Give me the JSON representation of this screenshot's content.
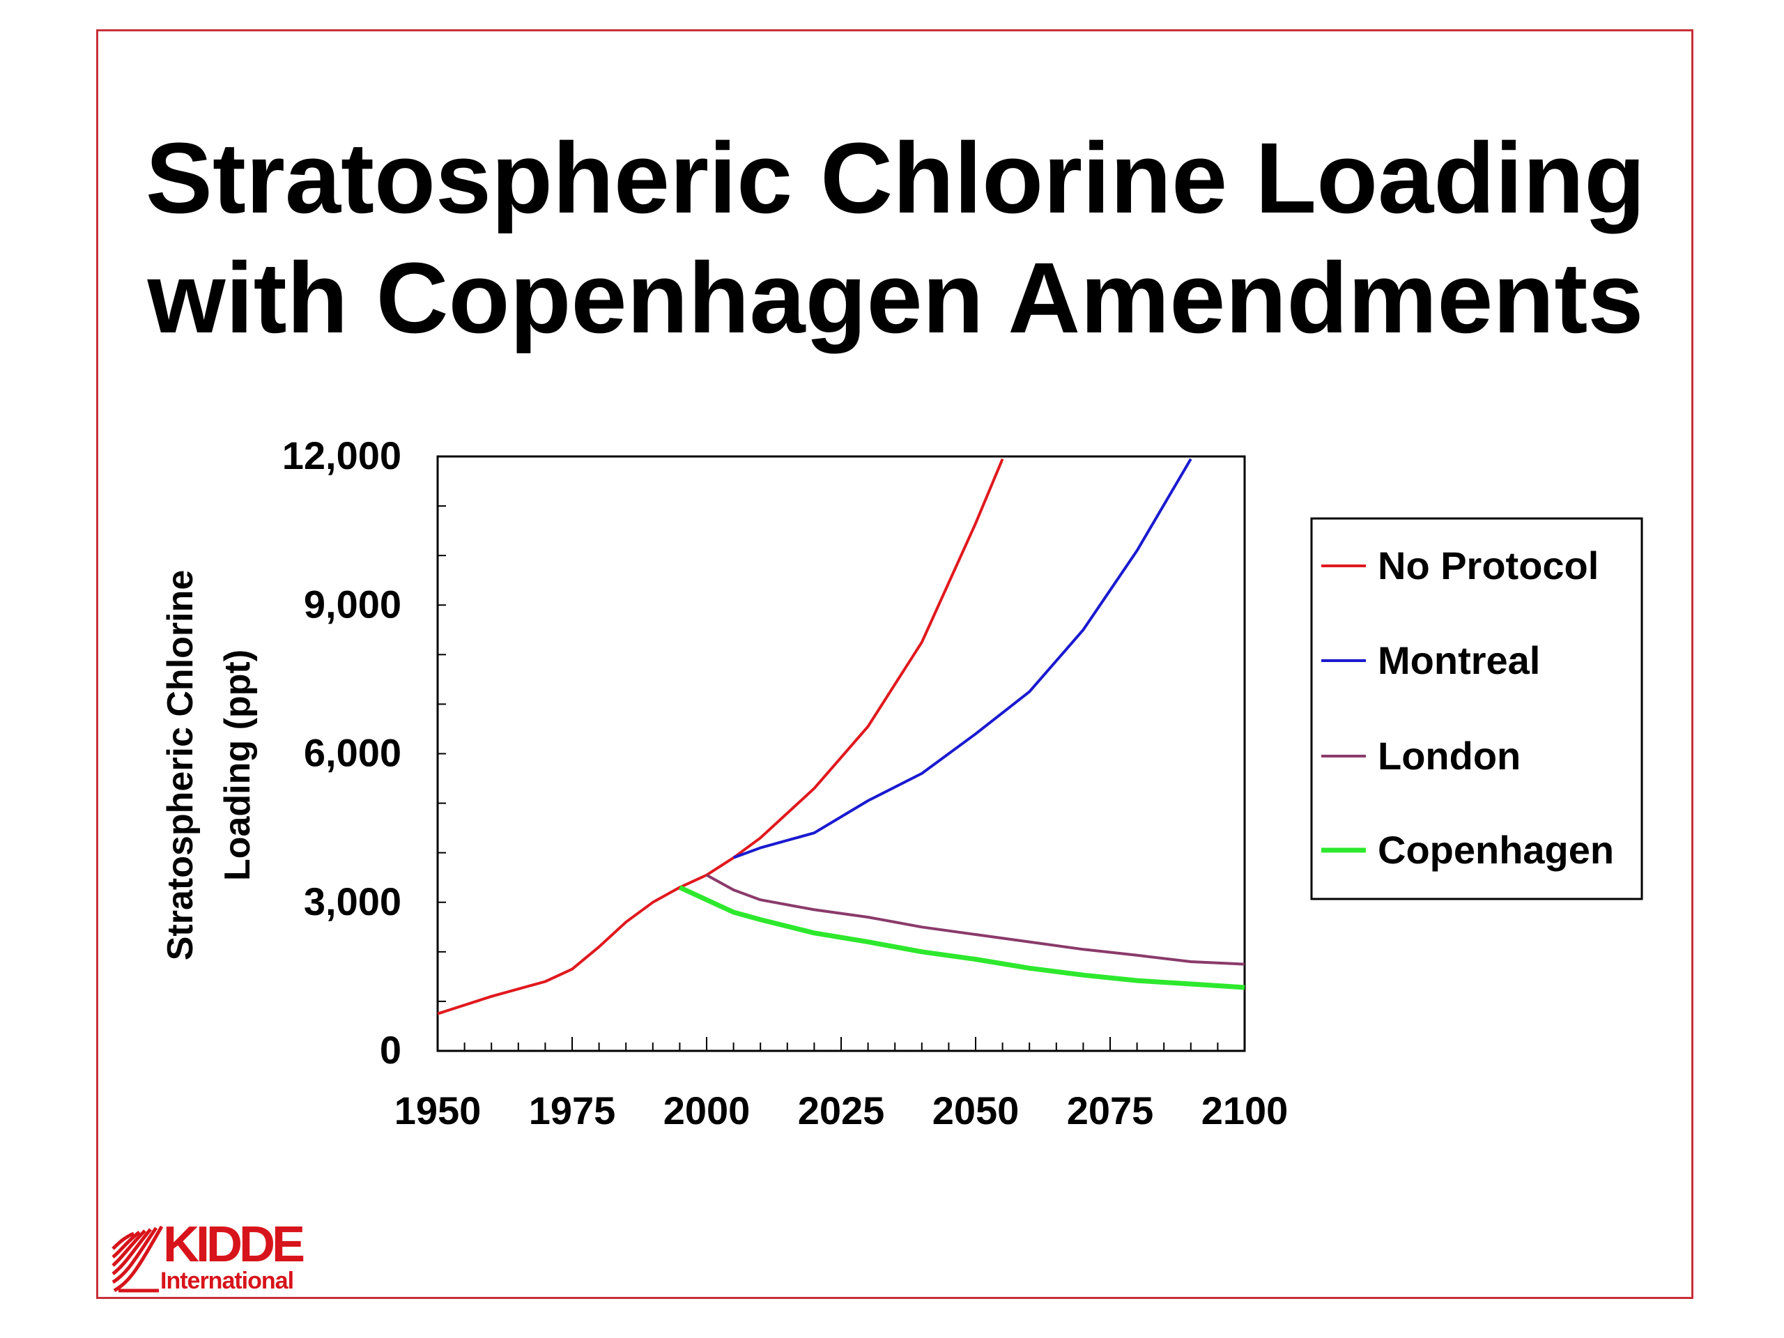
{
  "slide": {
    "title_line1": "Stratospheric Chlorine Loading",
    "title_line2": "with Copenhagen Amendments",
    "logo_text": "KIDDE",
    "logo_subtext": "International",
    "frame_color": "#c8303a",
    "logo_color": "#d7141b"
  },
  "chart_data": {
    "type": "line",
    "title": "Stratospheric Chlorine Loading with Copenhagen Amendments",
    "xlabel": "",
    "ylabel_lines": [
      "Stratospheric Chlorine",
      "Loading (ppt)"
    ],
    "xlim": [
      1950,
      2100
    ],
    "ylim": [
      0,
      12000
    ],
    "x_ticks": [
      1950,
      1975,
      2000,
      2025,
      2050,
      2075,
      2100
    ],
    "x_tick_labels": [
      "1950",
      "1975",
      "2000",
      "2025",
      "2050",
      "2075",
      "2100"
    ],
    "y_ticks": [
      0,
      3000,
      6000,
      9000,
      12000
    ],
    "y_tick_labels": [
      "0",
      "3,000",
      "6,000",
      "9,000",
      "12,000"
    ],
    "grid": false,
    "legend_position": "right",
    "series": [
      {
        "name": "No Protocol",
        "color": "#e0191e",
        "x": [
          1950,
          1960,
          1970,
          1975,
          1980,
          1985,
          1990,
          1995,
          2000,
          2005,
          2010,
          2020,
          2030,
          2040,
          2050,
          2055
        ],
        "y": [
          750,
          1100,
          1400,
          1650,
          2100,
          2600,
          3000,
          3300,
          3550,
          3900,
          4300,
          5300,
          6550,
          8250,
          10650,
          11950
        ]
      },
      {
        "name": "Montreal",
        "color": "#1a1ad0",
        "x": [
          2005,
          2010,
          2020,
          2030,
          2040,
          2050,
          2060,
          2070,
          2080,
          2090
        ],
        "y": [
          3900,
          4100,
          4400,
          5050,
          5600,
          6400,
          7250,
          8500,
          10100,
          11950
        ]
      },
      {
        "name": "London",
        "color": "#8a3a6a",
        "x": [
          2000,
          2005,
          2010,
          2020,
          2030,
          2040,
          2050,
          2060,
          2070,
          2080,
          2090,
          2100
        ],
        "y": [
          3550,
          3250,
          3050,
          2850,
          2700,
          2500,
          2350,
          2200,
          2050,
          1930,
          1800,
          1750
        ]
      },
      {
        "name": "Copenhagen",
        "color": "#2ee82e",
        "x": [
          1995,
          2000,
          2005,
          2010,
          2020,
          2030,
          2040,
          2050,
          2060,
          2070,
          2080,
          2090,
          2100
        ],
        "y": [
          3300,
          3050,
          2800,
          2650,
          2380,
          2200,
          2000,
          1850,
          1670,
          1530,
          1420,
          1350,
          1280
        ]
      }
    ]
  }
}
